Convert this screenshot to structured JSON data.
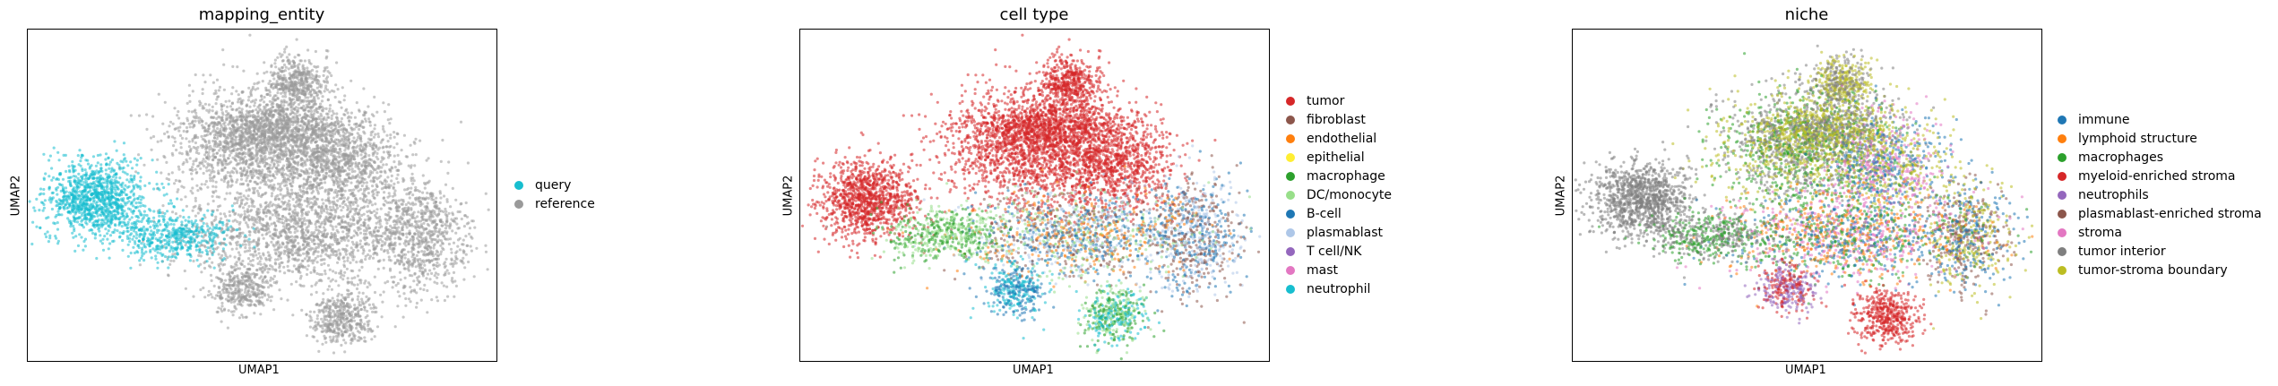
{
  "chart_data": [
    {
      "type": "scatter",
      "title": "mapping_entity",
      "xlabel": "UMAP1",
      "ylabel": "UMAP2",
      "grid": false,
      "legend_placement": "right",
      "series": [
        {
          "name": "query",
          "color": "#17becf"
        },
        {
          "name": "reference",
          "color": "#9a9a9a"
        }
      ]
    },
    {
      "type": "scatter",
      "title": "cell type",
      "xlabel": "UMAP1",
      "ylabel": "UMAP2",
      "grid": false,
      "legend_placement": "right",
      "series": [
        {
          "name": "tumor",
          "color": "#d62728"
        },
        {
          "name": "fibroblast",
          "color": "#8c564b"
        },
        {
          "name": "endothelial",
          "color": "#ff7f0e"
        },
        {
          "name": "epithelial",
          "color": "#ffee33"
        },
        {
          "name": "macrophage",
          "color": "#2ca02c"
        },
        {
          "name": "DC/monocyte",
          "color": "#98df8a"
        },
        {
          "name": "B-cell",
          "color": "#1f77b4"
        },
        {
          "name": "plasmablast",
          "color": "#aec7e8"
        },
        {
          "name": "T cell/NK",
          "color": "#9467bd"
        },
        {
          "name": "mast",
          "color": "#e377c2"
        },
        {
          "name": "neutrophil",
          "color": "#17becf"
        }
      ]
    },
    {
      "type": "scatter",
      "title": "niche",
      "xlabel": "UMAP1",
      "ylabel": "UMAP2",
      "grid": false,
      "legend_placement": "right",
      "series": [
        {
          "name": "immune",
          "color": "#1f77b4"
        },
        {
          "name": "lymphoid structure",
          "color": "#ff7f0e"
        },
        {
          "name": "macrophages",
          "color": "#2ca02c"
        },
        {
          "name": "myeloid-enriched stroma",
          "color": "#d62728"
        },
        {
          "name": "neutrophils",
          "color": "#9467bd"
        },
        {
          "name": "plasmablast-enriched stroma",
          "color": "#8c564b"
        },
        {
          "name": "stroma",
          "color": "#e377c2"
        },
        {
          "name": "tumor interior",
          "color": "#7f7f7f"
        },
        {
          "name": "tumor-stroma boundary",
          "color": "#bcbd22"
        }
      ]
    }
  ]
}
